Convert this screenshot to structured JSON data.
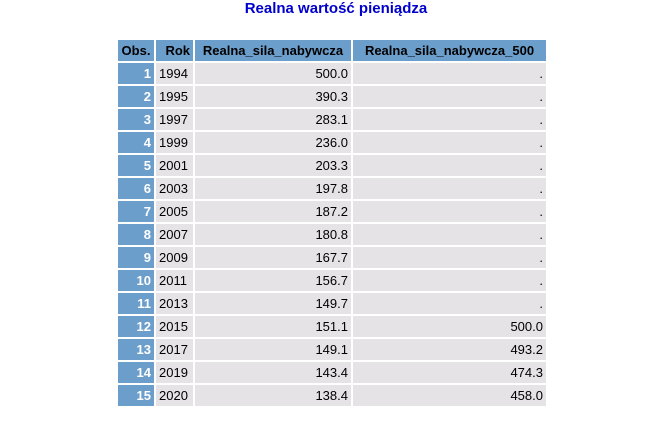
{
  "title": "Realna wartość pieniądza",
  "table": {
    "headers": [
      "Obs.",
      "Rok",
      "Realna_sila_nabywcza",
      "Realna_sila_nabywcza_500"
    ],
    "rows": [
      {
        "obs": "1",
        "rok": "1994",
        "rsn": "500.0",
        "rsn500": "."
      },
      {
        "obs": "2",
        "rok": "1995",
        "rsn": "390.3",
        "rsn500": "."
      },
      {
        "obs": "3",
        "rok": "1997",
        "rsn": "283.1",
        "rsn500": "."
      },
      {
        "obs": "4",
        "rok": "1999",
        "rsn": "236.0",
        "rsn500": "."
      },
      {
        "obs": "5",
        "rok": "2001",
        "rsn": "203.3",
        "rsn500": "."
      },
      {
        "obs": "6",
        "rok": "2003",
        "rsn": "197.8",
        "rsn500": "."
      },
      {
        "obs": "7",
        "rok": "2005",
        "rsn": "187.2",
        "rsn500": "."
      },
      {
        "obs": "8",
        "rok": "2007",
        "rsn": "180.8",
        "rsn500": "."
      },
      {
        "obs": "9",
        "rok": "2009",
        "rsn": "167.7",
        "rsn500": "."
      },
      {
        "obs": "10",
        "rok": "2011",
        "rsn": "156.7",
        "rsn500": "."
      },
      {
        "obs": "11",
        "rok": "2013",
        "rsn": "149.7",
        "rsn500": "."
      },
      {
        "obs": "12",
        "rok": "2015",
        "rsn": "151.1",
        "rsn500": "500.0"
      },
      {
        "obs": "13",
        "rok": "2017",
        "rsn": "149.1",
        "rsn500": "493.2"
      },
      {
        "obs": "14",
        "rok": "2019",
        "rsn": "143.4",
        "rsn500": "474.3"
      },
      {
        "obs": "15",
        "rok": "2020",
        "rsn": "138.4",
        "rsn500": "458.0"
      }
    ]
  },
  "colors": {
    "title": "#0000cc",
    "header_bg": "#6c9ecb",
    "cell_bg": "#e6e3e6"
  }
}
